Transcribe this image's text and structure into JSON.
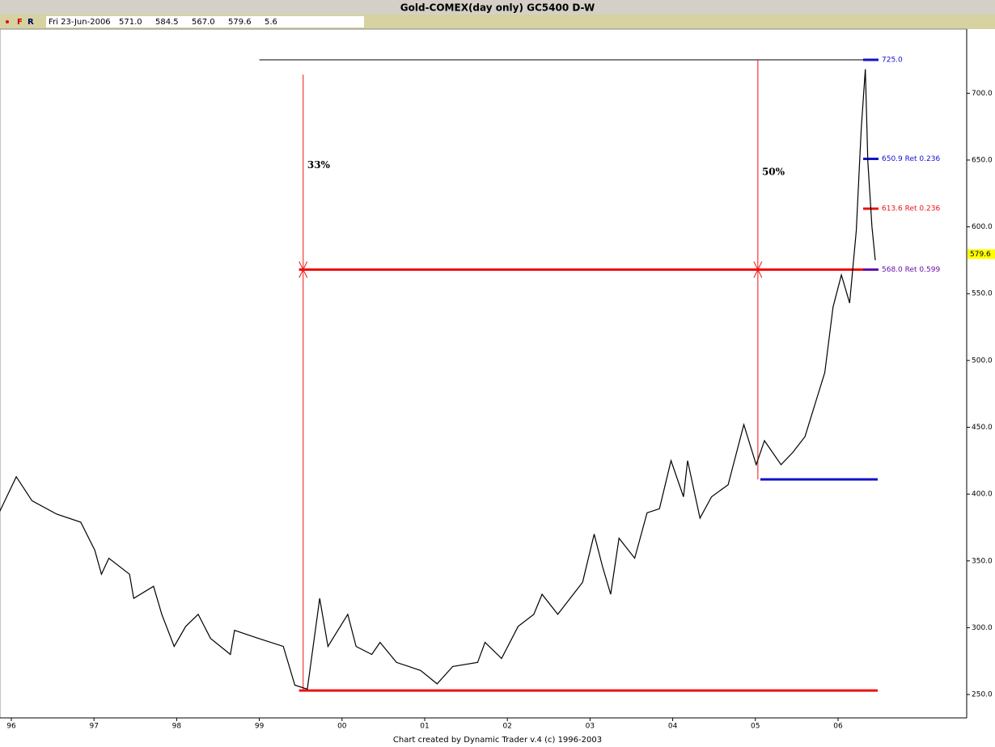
{
  "header": {
    "title": "Gold-COMEX(day only) GC5400 D-W",
    "flags": [
      "F",
      "R"
    ],
    "info": [
      "Fri 23-Jun-2006",
      "571.0",
      "584.5",
      "567.0",
      "579.6",
      "5.6"
    ]
  },
  "chart_data": {
    "type": "line",
    "color": "#000000",
    "x": [
      1995.86,
      1996.06,
      1996.25,
      1996.55,
      1996.84,
      1997.01,
      1997.09,
      1997.18,
      1997.43,
      1997.48,
      1997.72,
      1997.82,
      1997.97,
      1998.11,
      1998.26,
      1998.41,
      1998.65,
      1998.7,
      1998.99,
      1999.29,
      1999.43,
      1999.58,
      1999.73,
      1999.83,
      2000.07,
      2000.17,
      2000.36,
      2000.46,
      2000.66,
      2000.95,
      2001.15,
      2001.34,
      2001.64,
      2001.73,
      2001.93,
      2002.13,
      2002.32,
      2002.42,
      2002.61,
      2002.91,
      2003.05,
      2003.15,
      2003.25,
      2003.35,
      2003.54,
      2003.69,
      2003.84,
      2003.98,
      2004.13,
      2004.18,
      2004.33,
      2004.47,
      2004.67,
      2004.86,
      2005.01,
      2005.11,
      2005.31,
      2005.45,
      2005.6,
      2005.75,
      2005.84,
      2005.94,
      2006.04,
      2006.14,
      2006.22,
      2006.28,
      2006.33,
      2006.36,
      2006.41,
      2006.45
    ],
    "values": [
      387,
      413,
      395,
      385,
      379,
      358,
      340,
      352,
      340,
      322,
      331,
      310,
      286,
      301,
      310,
      292,
      280,
      298,
      292,
      286,
      257,
      254,
      322,
      286,
      310,
      286,
      280,
      289,
      274,
      268,
      258,
      271,
      274,
      289,
      277,
      301,
      310,
      325,
      310,
      334,
      370,
      346,
      325,
      367,
      352,
      386,
      389,
      425,
      398,
      425,
      382,
      398,
      407,
      452,
      422,
      440,
      422,
      431,
      443,
      473,
      491,
      540,
      564,
      543,
      597,
      673,
      718,
      649,
      600,
      575
    ],
    "xlim": [
      1995.863,
      2007.556
    ],
    "ylim": [
      232.5,
      748.0
    ],
    "xticks": [
      {
        "value": 1996,
        "label": "96"
      },
      {
        "value": 1997,
        "label": "97"
      },
      {
        "value": 1998,
        "label": "98"
      },
      {
        "value": 1999,
        "label": "99"
      },
      {
        "value": 2000,
        "label": "00"
      },
      {
        "value": 2001,
        "label": "01"
      },
      {
        "value": 2002,
        "label": "02"
      },
      {
        "value": 2003,
        "label": "03"
      },
      {
        "value": 2004,
        "label": "04"
      },
      {
        "value": 2005,
        "label": "05"
      },
      {
        "value": 2006,
        "label": "06"
      }
    ],
    "yticks": [
      {
        "value": 250,
        "label": "250.0"
      },
      {
        "value": 300,
        "label": "300.0"
      },
      {
        "value": 350,
        "label": "350.0"
      },
      {
        "value": 400,
        "label": "400.0"
      },
      {
        "value": 450,
        "label": "450.0"
      },
      {
        "value": 500,
        "label": "500.0"
      },
      {
        "value": 550,
        "label": "550.0"
      },
      {
        "value": 600,
        "label": "600.0"
      },
      {
        "value": 650,
        "label": "650.0"
      },
      {
        "value": 700,
        "label": "700.0"
      }
    ],
    "last_price": {
      "value": 579.6,
      "label": "579.6"
    },
    "hlines": [
      {
        "value": 725,
        "from": 1999.0,
        "to": 2006.48,
        "color": "#000000",
        "width": 1
      },
      {
        "value": 568,
        "from": 1999.48,
        "to": 2006.48,
        "color": "#ee1111",
        "width": 3
      },
      {
        "value": 253,
        "from": 1999.48,
        "to": 2006.48,
        "color": "#ee1111",
        "width": 3
      },
      {
        "value": 411,
        "from": 2005.06,
        "to": 2006.48,
        "color": "#1111cc",
        "width": 3
      }
    ],
    "levels": [
      {
        "value": 725,
        "label": "725.0",
        "color": "#1111cc"
      },
      {
        "value": 650.9,
        "label": "650.9 Ret 0.236",
        "color": "#1111cc"
      },
      {
        "value": 613.6,
        "label": "613.6 Ret 0.236",
        "color": "#ee1111"
      },
      {
        "value": 568,
        "label": "568.0 Ret 0.599",
        "color": "#6611aa"
      }
    ],
    "arrows": [
      {
        "x": 1999.53,
        "from": 714,
        "to": 568,
        "color": "#ee1111"
      },
      {
        "x": 1999.53,
        "from": 253,
        "to": 568,
        "color": "#ee1111"
      },
      {
        "x": 2005.03,
        "from": 725,
        "to": 568,
        "color": "#ee1111"
      },
      {
        "x": 2005.03,
        "from": 411,
        "to": 568,
        "color": "#ee1111"
      }
    ],
    "annotations": [
      {
        "text": "33%",
        "x": 1999.58,
        "y": 646
      },
      {
        "text": "50%",
        "x": 2005.08,
        "y": 641
      }
    ]
  },
  "footer": "Chart created by Dynamic Trader v.4  (c) 1996-2003"
}
